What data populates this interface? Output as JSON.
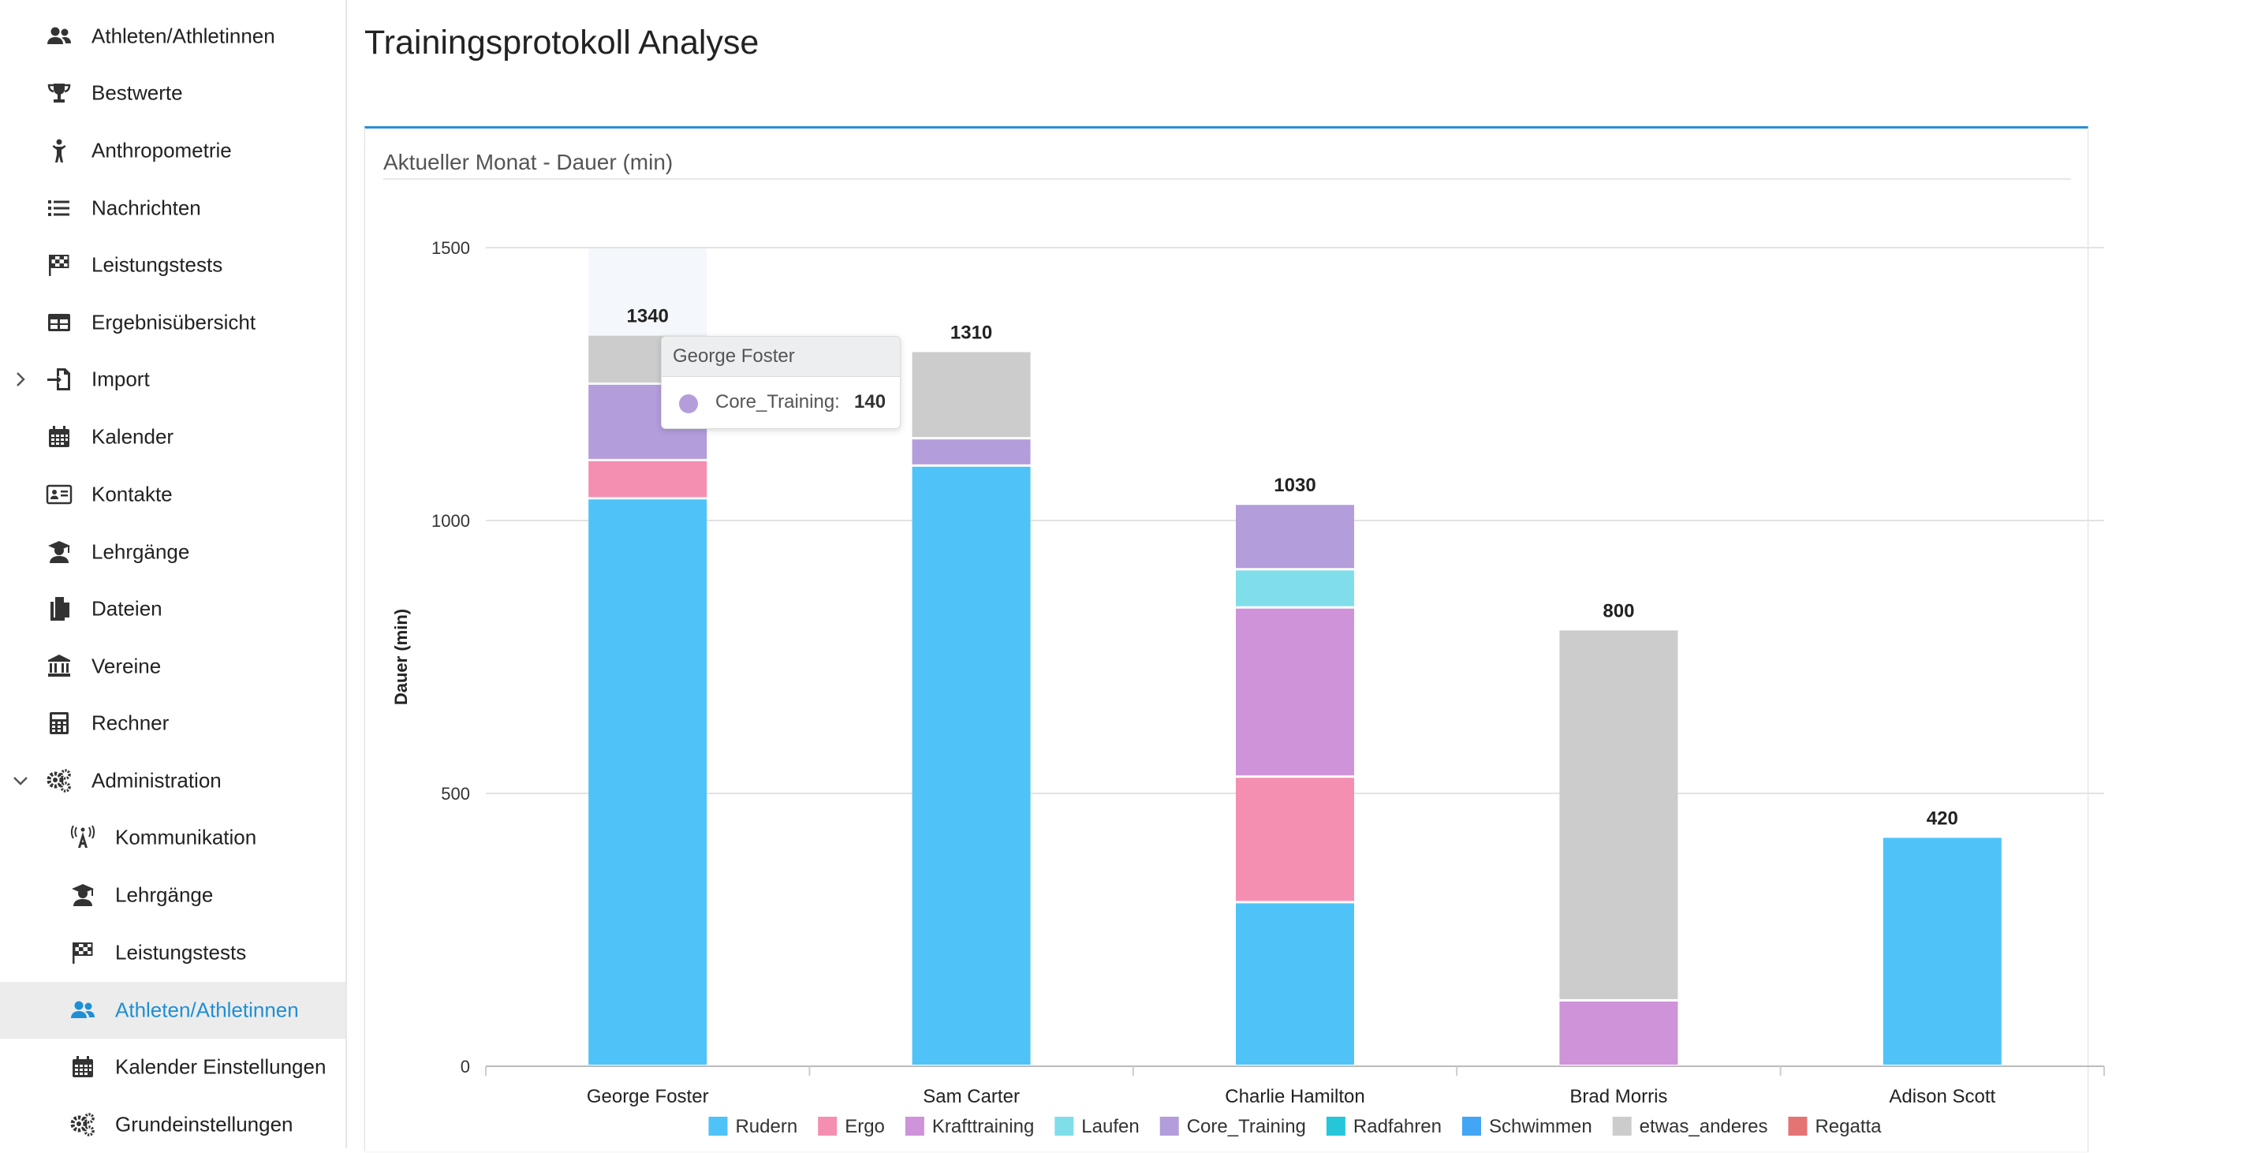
{
  "page": {
    "title": "Trainingsprotokoll Analyse"
  },
  "sidebar": {
    "items": [
      {
        "label": "Athleten/Athletinnen",
        "icon": "users-icon",
        "level": "top"
      },
      {
        "label": "Bestwerte",
        "icon": "trophy-icon",
        "level": "top"
      },
      {
        "label": "Anthropometrie",
        "icon": "person-icon",
        "level": "top"
      },
      {
        "label": "Nachrichten",
        "icon": "list-icon",
        "level": "top"
      },
      {
        "label": "Leistungstests",
        "icon": "checkered-flag-icon",
        "level": "top"
      },
      {
        "label": "Ergebnisübersicht",
        "icon": "table-icon",
        "level": "top"
      },
      {
        "label": "Import",
        "icon": "import-icon",
        "level": "top",
        "expander": "collapsed"
      },
      {
        "label": "Kalender",
        "icon": "calendar-icon",
        "level": "top"
      },
      {
        "label": "Kontakte",
        "icon": "contact-card-icon",
        "level": "top"
      },
      {
        "label": "Lehrgänge",
        "icon": "graduate-icon",
        "level": "top"
      },
      {
        "label": "Dateien",
        "icon": "files-icon",
        "level": "top"
      },
      {
        "label": "Vereine",
        "icon": "institution-icon",
        "level": "top"
      },
      {
        "label": "Rechner",
        "icon": "calculator-icon",
        "level": "top"
      },
      {
        "label": "Administration",
        "icon": "gears-icon",
        "level": "top",
        "expander": "expanded"
      },
      {
        "label": "Kommunikation",
        "icon": "broadcast-icon",
        "level": "sub"
      },
      {
        "label": "Lehrgänge",
        "icon": "graduate-icon",
        "level": "sub"
      },
      {
        "label": "Leistungstests",
        "icon": "checkered-flag-icon",
        "level": "sub"
      },
      {
        "label": "Athleten/Athletinnen",
        "icon": "users-icon",
        "level": "sub",
        "active": true
      },
      {
        "label": "Kalender Einstellungen",
        "icon": "calendar-icon",
        "level": "sub"
      },
      {
        "label": "Grundeinstellungen",
        "icon": "gears-icon",
        "level": "sub"
      }
    ],
    "active_color": "#1e8fd5"
  },
  "panel": {
    "title": "Aktueller Monat - Dauer (min)"
  },
  "tooltip": {
    "header": "George Foster",
    "series": "Core_Training:",
    "value": "140",
    "dot_color": "#b39ddb"
  },
  "chart_data": {
    "type": "bar",
    "stacked": true,
    "ylabel": "Dauer (min)",
    "xlabel": "",
    "ylim": [
      0,
      1500
    ],
    "yticks": [
      0,
      500,
      1000,
      1500
    ],
    "categories": [
      "George Foster",
      "Sam Carter",
      "Charlie Hamilton",
      "Brad Morris",
      "Adison Scott"
    ],
    "totals": [
      1340,
      1310,
      1030,
      800,
      420
    ],
    "highlighted_category": "George Foster",
    "legend_position": "bottom",
    "series": [
      {
        "name": "Rudern",
        "color": "#4fc3f7",
        "values": [
          1040,
          1100,
          300,
          0,
          420
        ]
      },
      {
        "name": "Ergo",
        "color": "#f48fb1",
        "values": [
          70,
          0,
          230,
          0,
          0
        ]
      },
      {
        "name": "Krafttraining",
        "color": "#ce93d8",
        "values": [
          0,
          0,
          310,
          120,
          0
        ]
      },
      {
        "name": "Laufen",
        "color": "#80deea",
        "values": [
          0,
          0,
          70,
          0,
          0
        ]
      },
      {
        "name": "Core_Training",
        "color": "#b39ddb",
        "values": [
          140,
          50,
          120,
          0,
          0
        ]
      },
      {
        "name": "Radfahren",
        "color": "#26c6da",
        "values": [
          0,
          0,
          0,
          0,
          0
        ]
      },
      {
        "name": "Schwimmen",
        "color": "#42a5f5",
        "values": [
          0,
          0,
          0,
          0,
          0
        ]
      },
      {
        "name": "etwas_anderes",
        "color": "#cccccc",
        "values": [
          90,
          160,
          0,
          680,
          0
        ]
      },
      {
        "name": "Regatta",
        "color": "#e57373",
        "values": [
          0,
          0,
          0,
          0,
          0
        ]
      }
    ]
  }
}
